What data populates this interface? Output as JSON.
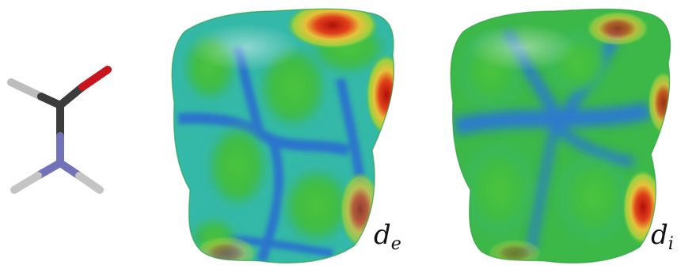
{
  "panels": [
    {
      "id": "molecule",
      "kind": "ball-and-stick"
    },
    {
      "id": "surface-de",
      "kind": "hirshfeld-surface",
      "label_main": "d",
      "label_sub": "e"
    },
    {
      "id": "surface-di",
      "kind": "hirshfeld-surface",
      "label_main": "d",
      "label_sub": "i"
    }
  ],
  "colors": {
    "carbon": "#3a3a3a",
    "oxygen": "#c8141c",
    "nitrogen": "#6e6eb4",
    "hydrogen": "#c8c8c8",
    "surface_green": "#34c23a",
    "surface_blue": "#2f7ad6",
    "surface_hot": "#c81a10"
  }
}
